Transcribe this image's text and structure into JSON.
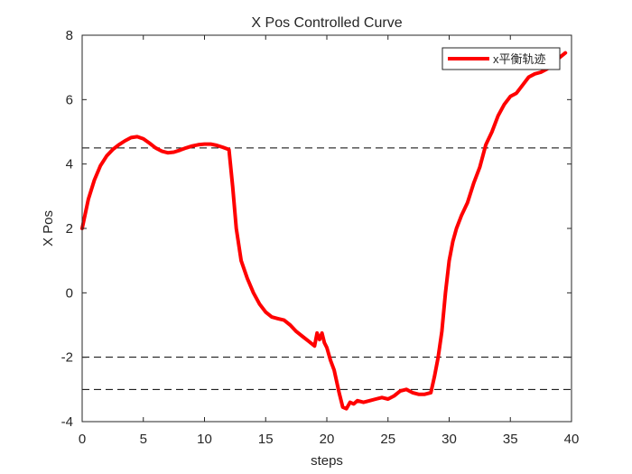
{
  "chart_data": {
    "type": "line",
    "title": "X Pos Controlled Curve",
    "xlabel": "steps",
    "ylabel": "X Pos",
    "xlim": [
      0,
      40
    ],
    "ylim": [
      -4,
      8
    ],
    "xticks": [
      0,
      5,
      10,
      15,
      20,
      25,
      30,
      35,
      40
    ],
    "yticks": [
      -4,
      -2,
      0,
      2,
      4,
      6,
      8
    ],
    "grid": false,
    "legend": {
      "position": "top-right"
    },
    "reference_lines": [
      {
        "y": 8,
        "style": "dashed",
        "color": "#000000"
      },
      {
        "y": 4.5,
        "style": "dashed",
        "color": "#000000"
      },
      {
        "y": -2,
        "style": "dashed",
        "color": "#000000"
      },
      {
        "y": -3,
        "style": "dashed",
        "color": "#000000"
      }
    ],
    "series": [
      {
        "name": "x平衡轨迹",
        "color": "#ff0000",
        "x": [
          0,
          0.5,
          1,
          1.5,
          2,
          2.5,
          3,
          3.5,
          4,
          4.5,
          5,
          5.5,
          6,
          6.5,
          7,
          7.5,
          8,
          8.5,
          9,
          9.5,
          10,
          10.5,
          11,
          11.5,
          12,
          12.3,
          12.6,
          13,
          13.5,
          14,
          14.5,
          15,
          15.5,
          16,
          16.5,
          17,
          17.5,
          18,
          18.5,
          19,
          19.2,
          19.4,
          19.6,
          19.8,
          20,
          20.3,
          20.6,
          21,
          21.3,
          21.6,
          21.9,
          22.2,
          22.5,
          23,
          23.5,
          24,
          24.5,
          25,
          25.5,
          26,
          26.5,
          27,
          27.5,
          28,
          28.5,
          28.8,
          29.1,
          29.4,
          29.7,
          30,
          30.3,
          30.6,
          31,
          31.5,
          32,
          32.5,
          33,
          33.5,
          34,
          34.5,
          35,
          35.5,
          36,
          36.5,
          37,
          37.5,
          38,
          38.5,
          39,
          39.5
        ],
        "values": [
          2.0,
          2.9,
          3.5,
          3.95,
          4.25,
          4.45,
          4.6,
          4.72,
          4.82,
          4.85,
          4.78,
          4.65,
          4.5,
          4.4,
          4.35,
          4.37,
          4.43,
          4.5,
          4.56,
          4.6,
          4.62,
          4.62,
          4.58,
          4.52,
          4.45,
          3.3,
          2.0,
          1.0,
          0.45,
          0.0,
          -0.35,
          -0.6,
          -0.75,
          -0.8,
          -0.85,
          -1.0,
          -1.2,
          -1.35,
          -1.5,
          -1.65,
          -1.25,
          -1.45,
          -1.25,
          -1.55,
          -1.7,
          -2.1,
          -2.4,
          -3.1,
          -3.55,
          -3.6,
          -3.4,
          -3.45,
          -3.35,
          -3.4,
          -3.35,
          -3.3,
          -3.25,
          -3.3,
          -3.2,
          -3.05,
          -3.0,
          -3.1,
          -3.15,
          -3.15,
          -3.1,
          -2.6,
          -2.0,
          -1.2,
          0.0,
          1.0,
          1.6,
          2.0,
          2.4,
          2.8,
          3.4,
          3.9,
          4.6,
          5.0,
          5.5,
          5.85,
          6.1,
          6.2,
          6.45,
          6.7,
          6.8,
          6.85,
          6.95,
          7.1,
          7.3,
          7.45
        ]
      }
    ]
  }
}
